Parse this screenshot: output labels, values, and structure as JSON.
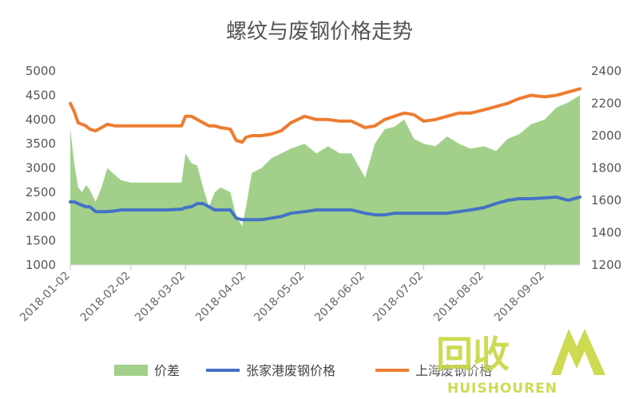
{
  "chart_data": {
    "type": "area+line",
    "title": "螺纹与废钢价格走势",
    "xlabel": "",
    "ylabel": "",
    "left_axis": {
      "ylim": [
        1000,
        5000
      ],
      "ticks": [
        "1000",
        "1500",
        "2000",
        "2500",
        "3000",
        "3500",
        "4000",
        "4500",
        "5000"
      ]
    },
    "right_axis": {
      "ylim": [
        1200,
        2400
      ],
      "ticks": [
        "1200",
        "1400",
        "1600",
        "1800",
        "2000",
        "2200",
        "2400"
      ]
    },
    "x_ticks": [
      "2018-01-02",
      "2018-02-02",
      "2018-03-02",
      "2018-04-02",
      "2018-05-02",
      "2018-06-02",
      "2018-07-02",
      "2018-08-02",
      "2018-09-02"
    ],
    "grid": false,
    "legend_position": "bottom",
    "x": [
      "2018-01-02",
      "2018-01-04",
      "2018-01-06",
      "2018-01-08",
      "2018-01-10",
      "2018-01-12",
      "2018-01-15",
      "2018-01-18",
      "2018-01-21",
      "2018-01-25",
      "2018-01-28",
      "2018-02-02",
      "2018-02-07",
      "2018-02-12",
      "2018-02-20",
      "2018-02-28",
      "2018-03-02",
      "2018-03-05",
      "2018-03-08",
      "2018-03-11",
      "2018-03-14",
      "2018-03-17",
      "2018-03-20",
      "2018-03-25",
      "2018-03-28",
      "2018-03-31",
      "2018-04-02",
      "2018-04-05",
      "2018-04-10",
      "2018-04-15",
      "2018-04-20",
      "2018-04-25",
      "2018-05-02",
      "2018-05-08",
      "2018-05-14",
      "2018-05-20",
      "2018-05-26",
      "2018-06-02",
      "2018-06-07",
      "2018-06-12",
      "2018-06-17",
      "2018-06-22",
      "2018-06-27",
      "2018-07-02",
      "2018-07-08",
      "2018-07-14",
      "2018-07-20",
      "2018-07-26",
      "2018-08-02",
      "2018-08-08",
      "2018-08-14",
      "2018-08-20",
      "2018-08-26",
      "2018-09-02",
      "2018-09-08",
      "2018-09-14",
      "2018-09-20"
    ],
    "series": [
      {
        "name": "价差",
        "axis": "left",
        "kind": "area",
        "color": "#a2d08a",
        "values": [
          3800,
          3100,
          2600,
          2500,
          2650,
          2550,
          2300,
          2600,
          3000,
          2850,
          2750,
          2700,
          2700,
          2700,
          2700,
          2700,
          3300,
          3100,
          3050,
          2600,
          2200,
          2500,
          2600,
          2500,
          2000,
          1800,
          2200,
          2900,
          3000,
          3200,
          3300,
          3400,
          3500,
          3300,
          3450,
          3300,
          3300,
          2800,
          3500,
          3800,
          3850,
          4000,
          3600,
          3500,
          3450,
          3650,
          3500,
          3400,
          3450,
          3350,
          3600,
          3700,
          3900,
          4000,
          4250,
          4350,
          4500
        ]
      },
      {
        "name": "张家港废钢价格",
        "axis": "right",
        "kind": "line",
        "color": "#4472c4",
        "values": [
          1590,
          1590,
          1580,
          1570,
          1560,
          1560,
          1530,
          1530,
          1530,
          1535,
          1540,
          1540,
          1540,
          1540,
          1540,
          1545,
          1555,
          1560,
          1580,
          1580,
          1560,
          1540,
          1540,
          1540,
          1490,
          1480,
          1480,
          1480,
          1480,
          1490,
          1500,
          1520,
          1530,
          1540,
          1540,
          1540,
          1540,
          1520,
          1510,
          1510,
          1520,
          1520,
          1520,
          1520,
          1520,
          1520,
          1530,
          1540,
          1555,
          1580,
          1600,
          1610,
          1610,
          1615,
          1620,
          1600,
          1620
        ]
      },
      {
        "name": "上海废钢价格",
        "axis": "right",
        "kind": "line",
        "color": "#ed7d31",
        "values": [
          2200,
          2150,
          2080,
          2070,
          2060,
          2040,
          2030,
          2050,
          2070,
          2060,
          2060,
          2060,
          2060,
          2060,
          2060,
          2060,
          2120,
          2120,
          2100,
          2080,
          2060,
          2060,
          2050,
          2040,
          1970,
          1960,
          1990,
          2000,
          2000,
          2010,
          2030,
          2080,
          2120,
          2100,
          2100,
          2090,
          2090,
          2050,
          2060,
          2100,
          2120,
          2140,
          2130,
          2090,
          2100,
          2120,
          2140,
          2140,
          2160,
          2180,
          2200,
          2230,
          2250,
          2240,
          2250,
          2270,
          2290
        ]
      }
    ]
  },
  "watermark": {
    "text_cn": "回收",
    "text_en": "HUISHOUREN",
    "color": "#c8d640"
  }
}
